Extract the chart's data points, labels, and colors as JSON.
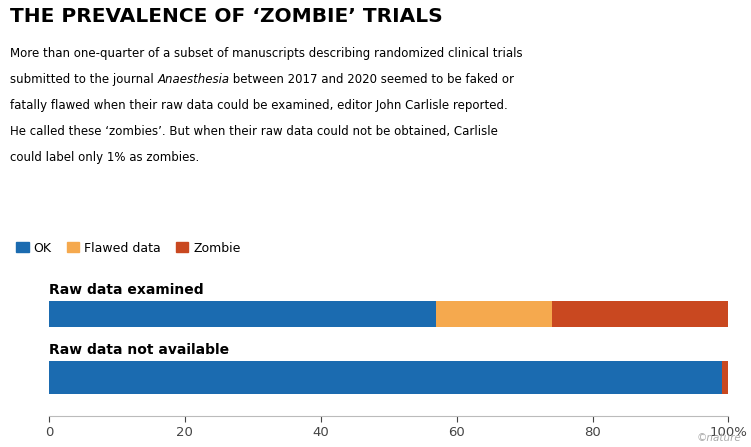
{
  "title": "THE PREVALENCE OF ‘ZOMBIE’ TRIALS",
  "subtitle_parts": [
    {
      "text": "More than one-quarter of a subset of manuscripts describing randomized clinical trials\nsubmitted to the journal ",
      "style": "normal"
    },
    {
      "text": "Anaesthesia",
      "style": "italic"
    },
    {
      "text": " between 2017 and 2020 seemed to be faked or\nfatally flawed when their raw data could be examined, editor John Carlisle reported.\nHe called these ‘zombies’. But when their raw data could not be obtained, Carlisle\ncould label only 1% as zombies.",
      "style": "normal"
    }
  ],
  "legend_labels": [
    "OK",
    "Flawed data",
    "Zombie"
  ],
  "colors": {
    "ok": "#1b6bb0",
    "flawed": "#f5a94e",
    "zombie": "#c94820"
  },
  "bars": [
    {
      "label": "Raw data examined",
      "ok": 57,
      "flawed": 17,
      "zombie": 26
    },
    {
      "label": "Raw data not available",
      "ok": 99,
      "flawed": 0,
      "zombie": 1
    }
  ],
  "xlim": [
    0,
    100
  ],
  "xticks": [
    0,
    20,
    40,
    60,
    80,
    100
  ],
  "xtick_labels": [
    "0",
    "20",
    "40",
    "60",
    "80",
    "100%"
  ],
  "background_color": "#ffffff",
  "nature_credit": "©nature"
}
